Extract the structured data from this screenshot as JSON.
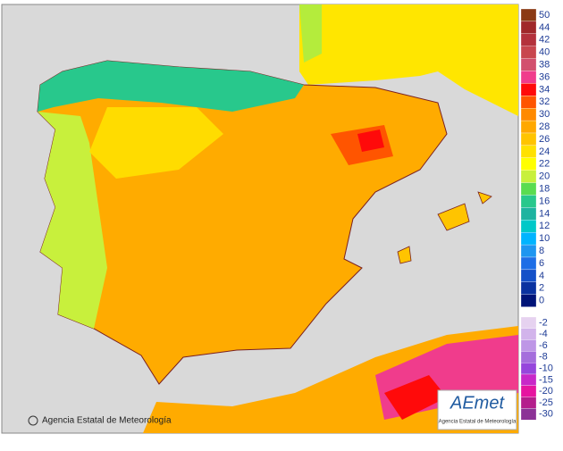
{
  "legend": {
    "entries": [
      {
        "label": "50",
        "color": "#8b3a14"
      },
      {
        "label": "44",
        "color": "#a0282a"
      },
      {
        "label": "42",
        "color": "#b4323c"
      },
      {
        "label": "40",
        "color": "#c8464e"
      },
      {
        "label": "38",
        "color": "#d2506e"
      },
      {
        "label": "36",
        "color": "#f03c8c"
      },
      {
        "label": "34",
        "color": "#ff0a0a"
      },
      {
        "label": "32",
        "color": "#ff5500"
      },
      {
        "label": "30",
        "color": "#ff8a00"
      },
      {
        "label": "28",
        "color": "#ffa800"
      },
      {
        "label": "26",
        "color": "#ffc400"
      },
      {
        "label": "24",
        "color": "#ffe100"
      },
      {
        "label": "22",
        "color": "#ffff00"
      },
      {
        "label": "20",
        "color": "#c8f03c"
      },
      {
        "label": "18",
        "color": "#5adc50"
      },
      {
        "label": "16",
        "color": "#28c88c"
      },
      {
        "label": "14",
        "color": "#1eb4a0"
      },
      {
        "label": "12",
        "color": "#00c8c8"
      },
      {
        "label": "10",
        "color": "#00b4ff"
      },
      {
        "label": "8",
        "color": "#1e96f0"
      },
      {
        "label": "6",
        "color": "#1e6ee6"
      },
      {
        "label": "4",
        "color": "#1450c8"
      },
      {
        "label": "2",
        "color": "#0a32a0"
      },
      {
        "label": "0",
        "color": "#001478"
      }
    ],
    "negative": [
      {
        "label": "-2",
        "color": "#e6d2f0"
      },
      {
        "label": "-4",
        "color": "#d2b4eb"
      },
      {
        "label": "-6",
        "color": "#be96e6"
      },
      {
        "label": "-8",
        "color": "#a56edc"
      },
      {
        "label": "-10",
        "color": "#9646dc"
      },
      {
        "label": "-15",
        "color": "#c828c8"
      },
      {
        "label": "-20",
        "color": "#e614a0"
      },
      {
        "label": "-25",
        "color": "#b41e8c"
      },
      {
        "label": "-30",
        "color": "#8c3296"
      }
    ]
  },
  "credit": "Agencia Estatal de Meteorología",
  "logo": {
    "name": "AEmet",
    "subtitle": "Agencia Estatal de Meteorología"
  }
}
